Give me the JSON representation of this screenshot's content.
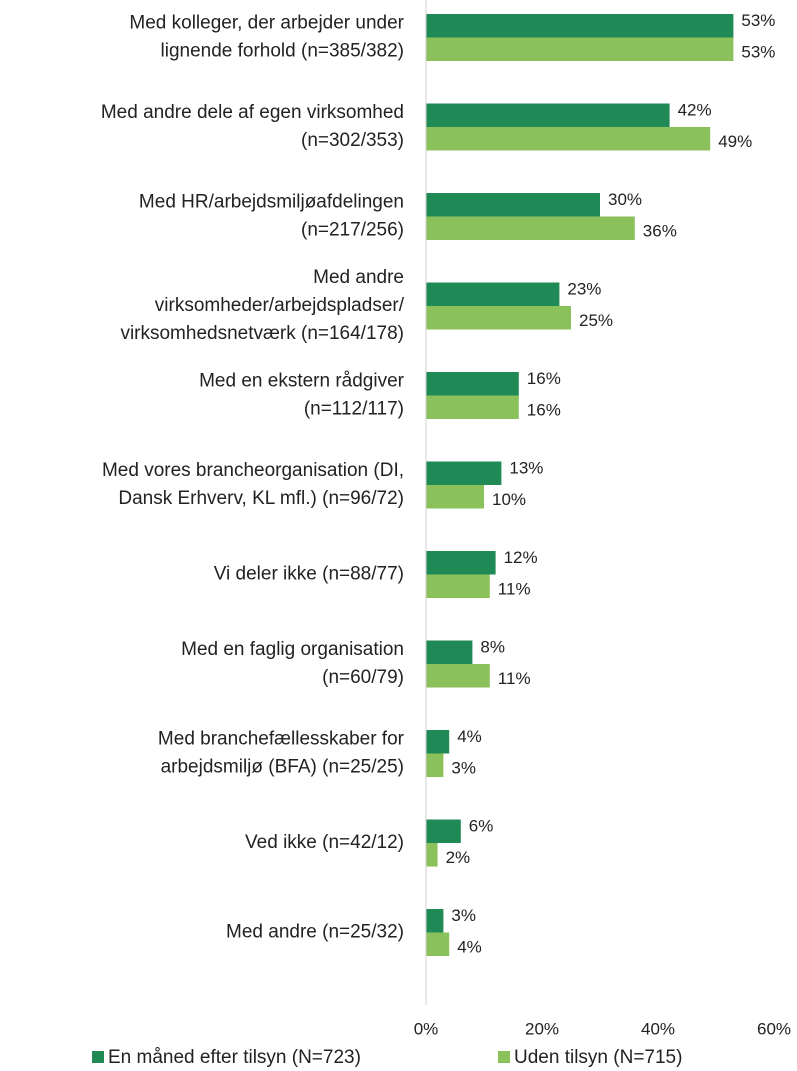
{
  "chart_data": {
    "type": "bar",
    "orientation": "horizontal",
    "categories": [
      [
        "Med kolleger, der arbejder under",
        "lignende forhold (n=385/382)"
      ],
      [
        "Med andre dele af egen virksomhed",
        "(n=302/353)"
      ],
      [
        "Med HR/arbejdsmiljøafdelingen",
        "(n=217/256)"
      ],
      [
        "Med andre",
        "virksomheder/arbejdspladser/",
        "virksomhedsnetværk (n=164/178)"
      ],
      [
        "Med en ekstern rådgiver",
        "(n=112/117)"
      ],
      [
        "Med vores brancheorganisation (DI,",
        "Dansk Erhverv, KL mfl.) (n=96/72)"
      ],
      [
        "Vi deler ikke  (n=88/77)"
      ],
      [
        "Med en faglig organisation",
        "(n=60/79)"
      ],
      [
        "Med branchefællesskaber for",
        "arbejdsmiljø (BFA) (n=25/25)"
      ],
      [
        "Ved ikke  (n=42/12)"
      ],
      [
        "Med andre  (n=25/32)"
      ]
    ],
    "series": [
      {
        "name": "En måned efter tilsyn (N=723)",
        "color": "#1f8a55",
        "values": [
          53,
          42,
          30,
          23,
          16,
          13,
          12,
          8,
          4,
          6,
          3
        ],
        "value_labels": [
          "53%",
          "42%",
          "30%",
          "23%",
          "16%",
          "13%",
          "12%",
          "8%",
          "4%",
          "6%",
          "3%"
        ]
      },
      {
        "name": "Uden tilsyn (N=715)",
        "color": "#8bc15a",
        "values": [
          53,
          49,
          36,
          25,
          16,
          10,
          11,
          11,
          3,
          2,
          4
        ],
        "value_labels": [
          "53%",
          "49%",
          "36%",
          "25%",
          "16%",
          "10%",
          "11%",
          "11%",
          "3%",
          "2%",
          "4%"
        ]
      }
    ],
    "xlim": [
      0,
      60
    ],
    "xticks": [
      {
        "value": 0,
        "label": "0%"
      },
      {
        "value": 20,
        "label": "20%"
      },
      {
        "value": 40,
        "label": "40%"
      },
      {
        "value": 60,
        "label": "60%"
      }
    ],
    "grid": false,
    "legend": "bottom"
  }
}
